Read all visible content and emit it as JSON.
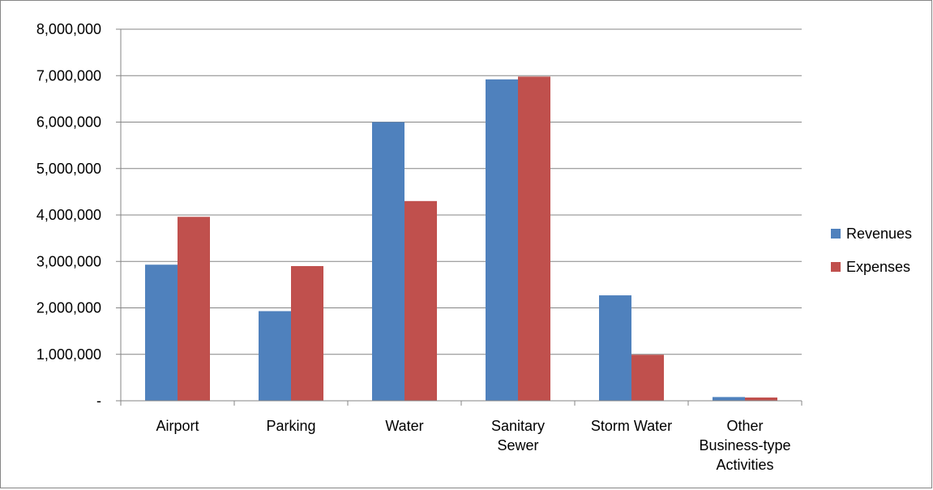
{
  "chart_data": {
    "type": "bar",
    "title": "",
    "xlabel": "",
    "ylabel": "",
    "categories": [
      [
        "Airport"
      ],
      [
        "Parking"
      ],
      [
        "Water"
      ],
      [
        "Sanitary",
        "Sewer"
      ],
      [
        "Storm Water"
      ],
      [
        "Other",
        "Business-type",
        "Activities"
      ]
    ],
    "series": [
      {
        "name": "Revenues",
        "color": "#4f81bd",
        "values": [
          2930000,
          1930000,
          6000000,
          6920000,
          2270000,
          80000
        ]
      },
      {
        "name": "Expenses",
        "color": "#c0504d",
        "values": [
          3960000,
          2900000,
          4300000,
          6980000,
          990000,
          70000
        ]
      }
    ],
    "ylim": [
      0,
      8000000
    ],
    "yticks": [
      0,
      1000000,
      2000000,
      3000000,
      4000000,
      5000000,
      6000000,
      7000000,
      8000000
    ],
    "ytick_labels": [
      "-",
      "1,000,000",
      "2,000,000",
      "3,000,000",
      "4,000,000",
      "5,000,000",
      "6,000,000",
      "7,000,000",
      "8,000,000"
    ],
    "grid": true,
    "legend_position": "right"
  }
}
